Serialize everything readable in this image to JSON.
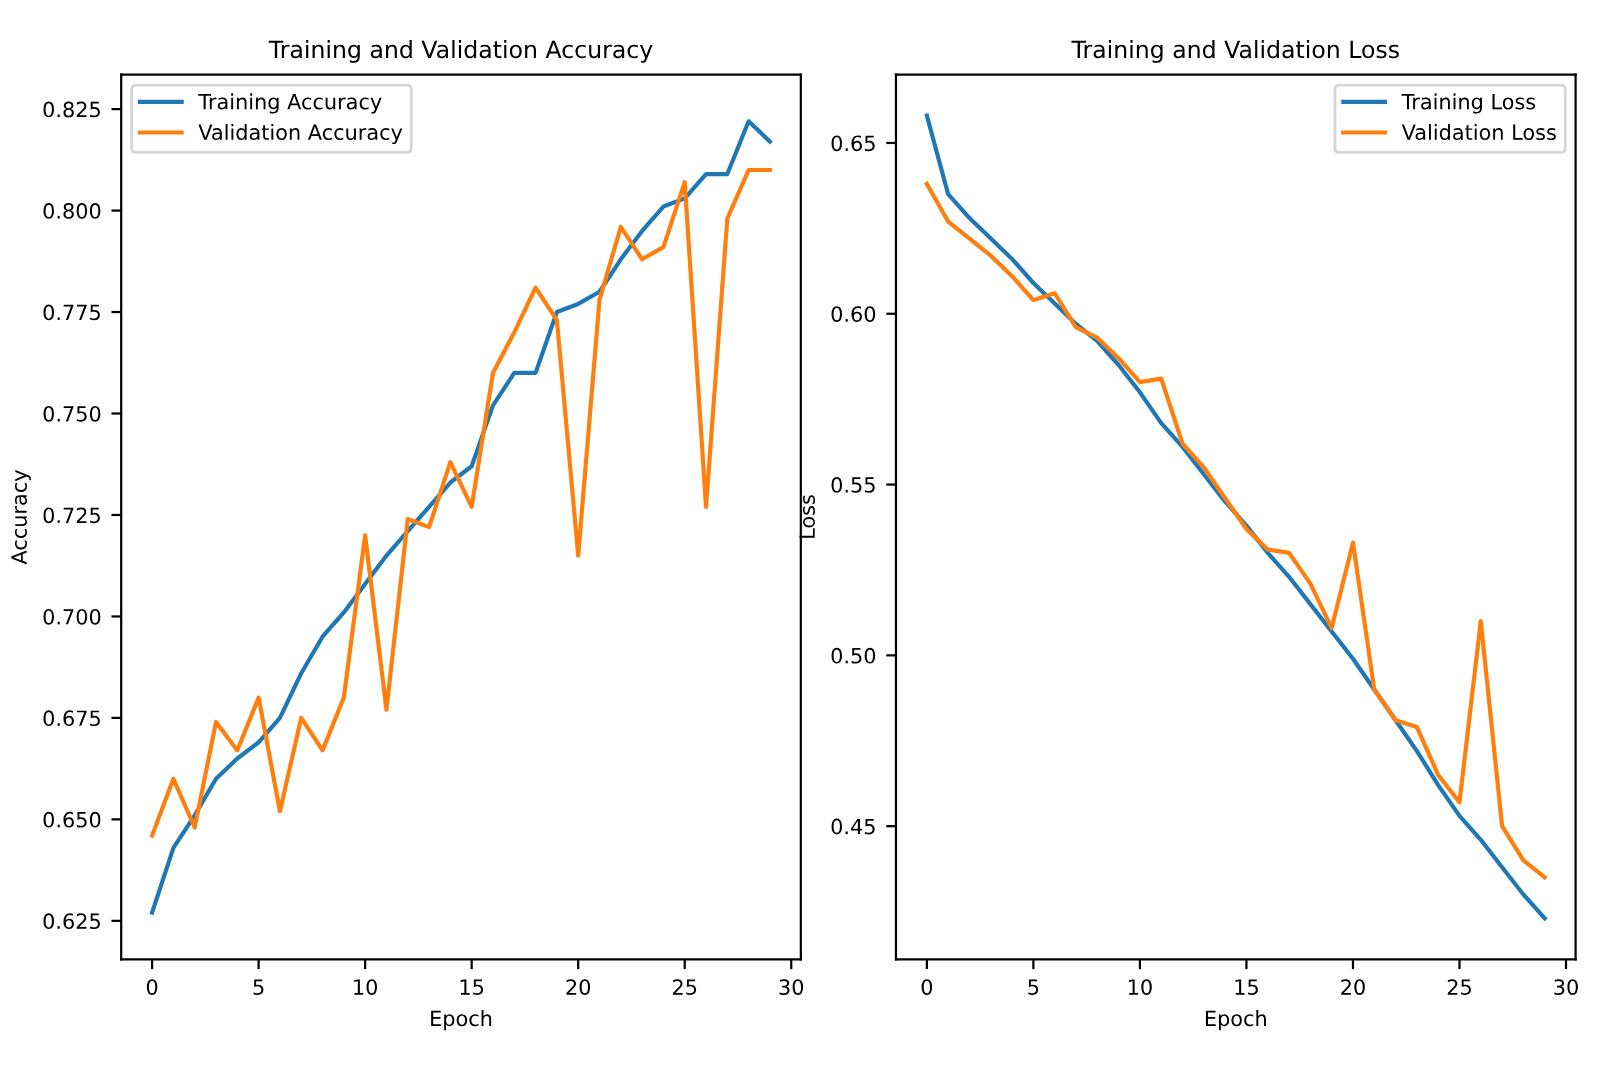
{
  "chart_data": [
    {
      "type": "line",
      "title": "Training and Validation Accuracy",
      "xlabel": "Epoch",
      "ylabel": "Accuracy",
      "x": [
        0,
        1,
        2,
        3,
        4,
        5,
        6,
        7,
        8,
        9,
        10,
        11,
        12,
        13,
        14,
        15,
        16,
        17,
        18,
        19,
        20,
        21,
        22,
        23,
        24,
        25,
        26,
        27,
        28,
        29
      ],
      "series": [
        {
          "name": "Training Accuracy",
          "color": "#1f77b4",
          "values": [
            0.627,
            0.643,
            0.651,
            0.66,
            0.665,
            0.669,
            0.675,
            0.686,
            0.695,
            0.701,
            0.708,
            0.715,
            0.721,
            0.727,
            0.733,
            0.737,
            0.752,
            0.76,
            0.76,
            0.775,
            0.777,
            0.78,
            0.788,
            0.795,
            0.801,
            0.803,
            0.809,
            0.809,
            0.822,
            0.817
          ]
        },
        {
          "name": "Validation Accuracy",
          "color": "#ff7f0e",
          "values": [
            0.646,
            0.66,
            0.648,
            0.674,
            0.667,
            0.68,
            0.652,
            0.675,
            0.667,
            0.68,
            0.72,
            0.677,
            0.724,
            0.722,
            0.738,
            0.727,
            0.76,
            0.77,
            0.781,
            0.773,
            0.715,
            0.778,
            0.796,
            0.788,
            0.791,
            0.807,
            0.727,
            0.798,
            0.81,
            0.81
          ]
        }
      ],
      "xlim": [
        -1.45,
        30.45
      ],
      "xticks": [
        0,
        5,
        10,
        15,
        20,
        25,
        30
      ],
      "ylim": [
        0.6155,
        0.8335
      ],
      "yticks": [
        {
          "value": 0.625,
          "label": "0.625"
        },
        {
          "value": 0.65,
          "label": "0.650"
        },
        {
          "value": 0.675,
          "label": "0.675"
        },
        {
          "value": 0.7,
          "label": "0.700"
        },
        {
          "value": 0.725,
          "label": "0.725"
        },
        {
          "value": 0.75,
          "label": "0.750"
        },
        {
          "value": 0.775,
          "label": "0.775"
        },
        {
          "value": 0.8,
          "label": "0.800"
        },
        {
          "value": 0.825,
          "label": "0.825"
        }
      ],
      "legend": "top left",
      "grid": false
    },
    {
      "type": "line",
      "title": "Training and Validation Loss",
      "xlabel": "Epoch",
      "ylabel": "Loss",
      "x": [
        0,
        1,
        2,
        3,
        4,
        5,
        6,
        7,
        8,
        9,
        10,
        11,
        12,
        13,
        14,
        15,
        16,
        17,
        18,
        19,
        20,
        21,
        22,
        23,
        24,
        25,
        26,
        27,
        28,
        29
      ],
      "series": [
        {
          "name": "Training Loss",
          "color": "#1f77b4",
          "values": [
            0.658,
            0.635,
            0.628,
            0.622,
            0.616,
            0.609,
            0.603,
            0.597,
            0.592,
            0.585,
            0.577,
            0.568,
            0.561,
            0.553,
            0.545,
            0.538,
            0.53,
            0.523,
            0.515,
            0.507,
            0.499,
            0.49,
            0.481,
            0.472,
            0.462,
            0.453,
            0.446,
            0.438,
            0.43,
            0.423
          ]
        },
        {
          "name": "Validation Loss",
          "color": "#ff7f0e",
          "values": [
            0.638,
            0.627,
            0.622,
            0.617,
            0.611,
            0.604,
            0.606,
            0.596,
            0.593,
            0.587,
            0.58,
            0.581,
            0.562,
            0.555,
            0.546,
            0.537,
            0.531,
            0.53,
            0.521,
            0.508,
            0.533,
            0.49,
            0.481,
            0.479,
            0.465,
            0.457,
            0.51,
            0.45,
            0.44,
            0.435
          ]
        }
      ],
      "xlim": [
        -1.45,
        30.45
      ],
      "xticks": [
        0,
        5,
        10,
        15,
        20,
        25,
        30
      ],
      "ylim": [
        0.411,
        0.67
      ],
      "yticks": [
        {
          "value": 0.45,
          "label": "0.45"
        },
        {
          "value": 0.5,
          "label": "0.50"
        },
        {
          "value": 0.55,
          "label": "0.55"
        },
        {
          "value": 0.6,
          "label": "0.60"
        },
        {
          "value": 0.65,
          "label": "0.65"
        }
      ],
      "legend": "top right",
      "grid": false
    }
  ]
}
